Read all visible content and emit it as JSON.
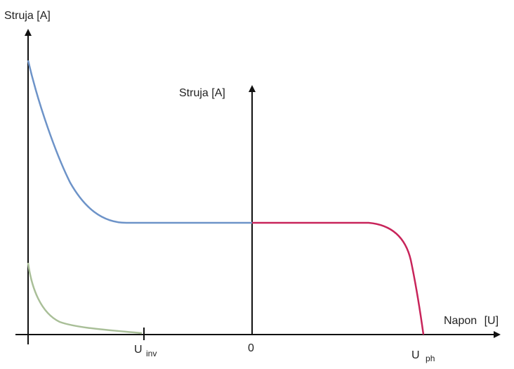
{
  "chart_data": {
    "type": "line",
    "axes": {
      "left_y_label": "Struja [A]",
      "center_y_label": "Struja [A]",
      "x_label": "Napon [U]",
      "x_label_text": "Napon",
      "x_label_unit": "[U]"
    },
    "x_ticks": [
      {
        "name": "U",
        "sub": "inv"
      },
      {
        "text": "0"
      },
      {
        "name": "U",
        "sub": "ph"
      }
    ],
    "series_colors": {
      "blue": "#6d93c8",
      "red": "#c8245a",
      "green": "#a9bf98"
    }
  }
}
